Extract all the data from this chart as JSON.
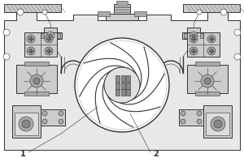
{
  "bg_color": "#ffffff",
  "lc": "#333333",
  "lc2": "#666666",
  "gray1": "#cccccc",
  "gray2": "#aaaaaa",
  "gray3": "#888888",
  "gray4": "#dddddd",
  "label1": "1",
  "label2": "2"
}
